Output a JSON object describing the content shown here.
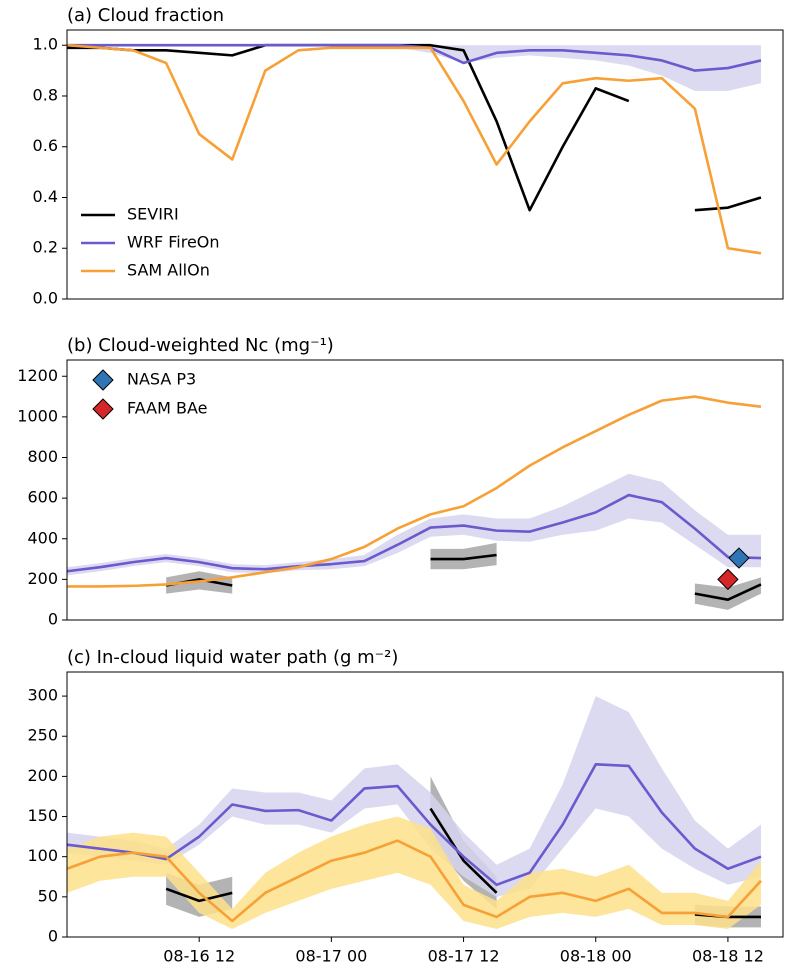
{
  "chart_data": [
    {
      "type": "line",
      "title": "(a) Cloud fraction",
      "x": [
        "08-16 00",
        "08-16 03",
        "08-16 06",
        "08-16 09",
        "08-16 12",
        "08-16 15",
        "08-16 18",
        "08-16 21",
        "08-17 00",
        "08-17 03",
        "08-17 06",
        "08-17 09",
        "08-17 12",
        "08-17 15",
        "08-17 18",
        "08-17 21",
        "08-18 00",
        "08-18 03",
        "08-18 06",
        "08-18 09",
        "08-18 12",
        "08-18 15"
      ],
      "xlim": [
        "08-16 00",
        "08-18 17"
      ],
      "ylim": [
        0,
        1.06
      ],
      "yticks": [
        {
          "value": 0,
          "label": "0.0"
        },
        0.2,
        0.4,
        0.6,
        0.8,
        {
          "value": 1,
          "label": "1.0"
        }
      ],
      "legend": "lower left",
      "series": [
        {
          "name": "SEVIRI",
          "color": "#000000",
          "values": [
            0.99,
            0.99,
            0.98,
            0.98,
            0.97,
            0.96,
            1.0,
            1.0,
            1.0,
            1.0,
            1.0,
            1.0,
            0.98,
            0.7,
            0.35,
            0.6,
            0.83,
            0.78,
            null,
            0.35,
            0.36,
            0.4
          ]
        },
        {
          "name": "WRF FireOn",
          "color": "#6a5acd",
          "band_color": "#d6d4ee",
          "values": [
            1,
            1,
            1,
            1,
            1,
            1,
            1,
            1,
            1,
            1,
            1,
            0.99,
            0.93,
            0.97,
            0.98,
            0.98,
            0.97,
            0.96,
            0.94,
            0.9,
            0.91,
            0.94
          ],
          "lower": [
            1,
            1,
            1,
            1,
            1,
            1,
            1,
            1,
            1,
            1,
            0.99,
            0.97,
            0.93,
            0.95,
            0.96,
            0.95,
            0.94,
            0.92,
            0.88,
            0.82,
            0.82,
            0.85
          ],
          "upper": [
            1,
            1,
            1,
            1,
            1,
            1,
            1,
            1,
            1,
            1,
            1,
            1,
            1,
            1,
            1,
            1,
            1,
            1,
            1,
            1,
            1,
            1
          ]
        },
        {
          "name": "SAM AllOn",
          "color": "#f7a035",
          "values": [
            1.0,
            0.99,
            0.98,
            0.93,
            0.65,
            0.55,
            0.9,
            0.98,
            0.99,
            0.99,
            0.99,
            0.99,
            0.78,
            0.53,
            0.7,
            0.85,
            0.87,
            0.86,
            0.87,
            0.75,
            0.2,
            0.18
          ]
        }
      ]
    },
    {
      "type": "line",
      "title": "(b) Cloud-weighted Nc (mg⁻¹)",
      "x": [
        "08-16 00",
        "08-16 03",
        "08-16 06",
        "08-16 09",
        "08-16 12",
        "08-16 15",
        "08-16 18",
        "08-16 21",
        "08-17 00",
        "08-17 03",
        "08-17 06",
        "08-17 09",
        "08-17 12",
        "08-17 15",
        "08-17 18",
        "08-17 21",
        "08-18 00",
        "08-18 03",
        "08-18 06",
        "08-18 09",
        "08-18 12",
        "08-18 15"
      ],
      "xlim": [
        "08-16 00",
        "08-18 17"
      ],
      "ylim": [
        0,
        1280
      ],
      "yticks": [
        0,
        200,
        400,
        600,
        800,
        1000,
        1200
      ],
      "legend": "upper left",
      "series": [
        {
          "color": "#000000",
          "band_color": "#a6a6a6",
          "values": [
            null,
            null,
            null,
            170,
            200,
            170,
            null,
            null,
            null,
            null,
            null,
            300,
            300,
            320,
            null,
            null,
            null,
            null,
            null,
            130,
            100,
            175
          ],
          "lower": [
            null,
            null,
            null,
            130,
            150,
            130,
            null,
            null,
            null,
            null,
            null,
            250,
            250,
            270,
            null,
            null,
            null,
            null,
            null,
            80,
            50,
            130
          ],
          "upper": [
            null,
            null,
            null,
            210,
            240,
            210,
            null,
            null,
            null,
            null,
            null,
            350,
            350,
            380,
            null,
            null,
            null,
            null,
            null,
            180,
            160,
            210
          ]
        },
        {
          "color": "#6a5acd",
          "band_color": "#d6d4ee",
          "values": [
            240,
            260,
            285,
            305,
            285,
            255,
            250,
            265,
            275,
            290,
            370,
            455,
            465,
            440,
            435,
            480,
            530,
            615,
            580,
            450,
            310,
            305
          ],
          "lower": [
            220,
            240,
            265,
            285,
            265,
            235,
            230,
            245,
            250,
            265,
            330,
            410,
            420,
            390,
            385,
            420,
            440,
            500,
            480,
            370,
            260,
            260
          ],
          "upper": [
            260,
            280,
            305,
            325,
            305,
            275,
            270,
            285,
            300,
            320,
            420,
            500,
            520,
            500,
            500,
            560,
            640,
            720,
            680,
            540,
            420,
            420
          ]
        },
        {
          "color": "#f7a035",
          "values": [
            165,
            165,
            168,
            175,
            190,
            210,
            235,
            260,
            300,
            360,
            450,
            520,
            560,
            650,
            760,
            850,
            930,
            1010,
            1080,
            1100,
            1070,
            1050
          ]
        }
      ],
      "markers": [
        {
          "name": "NASA P3",
          "color": "#2e75b6",
          "x": [
            "08-18 13"
          ],
          "values": [
            305
          ]
        },
        {
          "name": "FAAM BAe",
          "color": "#d62728",
          "x": [
            "08-18 12"
          ],
          "values": [
            200
          ]
        }
      ]
    },
    {
      "type": "line",
      "title": "(c) In-cloud liquid water path (g m⁻²)",
      "x": [
        "08-16 00",
        "08-16 03",
        "08-16 06",
        "08-16 09",
        "08-16 12",
        "08-16 15",
        "08-16 18",
        "08-16 21",
        "08-17 00",
        "08-17 03",
        "08-17 06",
        "08-17 09",
        "08-17 12",
        "08-17 15",
        "08-17 18",
        "08-17 21",
        "08-18 00",
        "08-18 03",
        "08-18 06",
        "08-18 09",
        "08-18 12",
        "08-18 15"
      ],
      "xlim": [
        "08-16 00",
        "08-18 17"
      ],
      "xticks": [
        "08-16 12",
        "08-17 00",
        "08-17 12",
        "08-18 00",
        "08-18 12"
      ],
      "ylim": [
        0,
        330
      ],
      "yticks": [
        0,
        50,
        100,
        150,
        200,
        250,
        300
      ],
      "series": [
        {
          "color": "#000000",
          "band_color": "#a6a6a6",
          "values": [
            null,
            null,
            null,
            60,
            45,
            55,
            null,
            null,
            null,
            null,
            null,
            160,
            95,
            55,
            null,
            null,
            null,
            null,
            null,
            28,
            25,
            25
          ],
          "lower": [
            null,
            null,
            null,
            40,
            25,
            35,
            null,
            null,
            null,
            null,
            null,
            120,
            70,
            35,
            null,
            null,
            null,
            null,
            null,
            15,
            12,
            12
          ],
          "upper": [
            null,
            null,
            null,
            80,
            65,
            75,
            null,
            null,
            null,
            null,
            null,
            200,
            120,
            75,
            null,
            null,
            null,
            null,
            null,
            40,
            38,
            38
          ]
        },
        {
          "color": "#6a5acd",
          "band_color": "#d6d4ee",
          "values": [
            115,
            110,
            105,
            97,
            125,
            165,
            157,
            158,
            145,
            185,
            188,
            140,
            100,
            65,
            80,
            140,
            215,
            213,
            155,
            110,
            85,
            100
          ],
          "lower": [
            105,
            100,
            95,
            90,
            115,
            150,
            140,
            140,
            130,
            160,
            165,
            110,
            75,
            50,
            60,
            110,
            160,
            150,
            110,
            85,
            65,
            75
          ],
          "upper": [
            130,
            125,
            120,
            110,
            140,
            185,
            180,
            180,
            170,
            210,
            215,
            180,
            130,
            90,
            110,
            190,
            300,
            280,
            210,
            145,
            110,
            140
          ]
        },
        {
          "color": "#f7a035",
          "band_color": "#fde08a",
          "values": [
            85,
            100,
            105,
            100,
            55,
            20,
            55,
            75,
            95,
            105,
            120,
            100,
            40,
            25,
            50,
            55,
            45,
            60,
            30,
            30,
            25,
            70
          ],
          "lower": [
            55,
            70,
            75,
            75,
            30,
            10,
            30,
            45,
            60,
            70,
            80,
            65,
            20,
            10,
            25,
            30,
            25,
            35,
            15,
            15,
            10,
            40
          ],
          "upper": [
            110,
            125,
            130,
            125,
            80,
            35,
            80,
            105,
            125,
            140,
            150,
            135,
            65,
            45,
            80,
            85,
            75,
            90,
            55,
            55,
            45,
            95
          ]
        }
      ]
    }
  ]
}
